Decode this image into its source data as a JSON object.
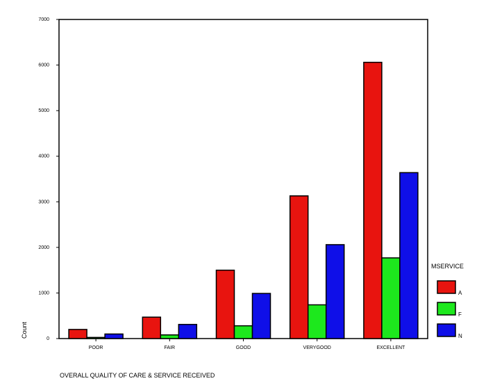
{
  "chart_data": {
    "type": "bar",
    "title": "",
    "xlabel": "OVERALL QUALITY OF CARE & SERVICE RECEIVED",
    "ylabel": "Count",
    "ylim": [
      0,
      7000
    ],
    "yticks": [
      0,
      1000,
      2000,
      3000,
      4000,
      5000,
      6000,
      7000
    ],
    "grid": false,
    "legend_position": "right",
    "legend_title": "MSERVICE",
    "categories": [
      "POOR",
      "FAIR",
      "GOOD",
      "VERYGOOD",
      "EXCELLENT"
    ],
    "series": [
      {
        "name": "A",
        "color": "#e8140f",
        "values": [
          200,
          470,
          1500,
          3130,
          6060
        ]
      },
      {
        "name": "F",
        "color": "#1de81d",
        "values": [
          25,
          80,
          280,
          740,
          1770
        ]
      },
      {
        "name": "N",
        "color": "#0f0fe8",
        "values": [
          100,
          310,
          990,
          2060,
          3640
        ]
      }
    ]
  }
}
